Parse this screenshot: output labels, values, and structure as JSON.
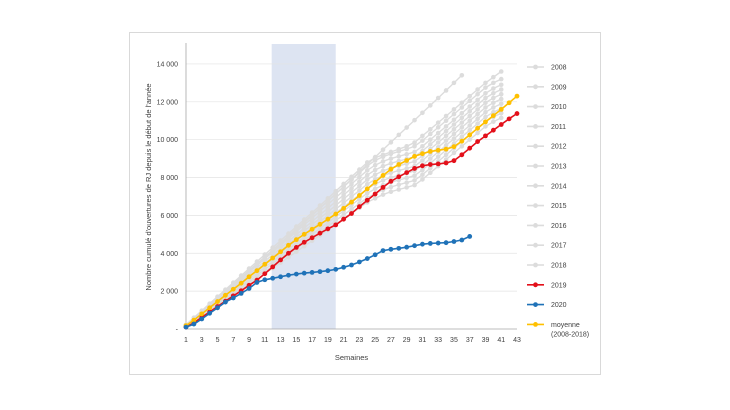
{
  "chart_data": {
    "type": "line",
    "xlabel": "Semaines",
    "ylabel": "Nombre cumulé d'ouvertures de RJ depuis le début de l'année",
    "ylim": [
      0,
      15000
    ],
    "xlim": [
      1,
      43
    ],
    "y_ticks": [
      "-",
      "2 000",
      "4 000",
      "6 000",
      "8 000",
      "10 000",
      "12 000",
      "14 000"
    ],
    "x_ticks": [
      1,
      3,
      5,
      7,
      9,
      11,
      13,
      15,
      17,
      19,
      21,
      23,
      25,
      27,
      29,
      31,
      33,
      35,
      37,
      39,
      41,
      43
    ],
    "shaded_weeks": [
      12,
      20
    ],
    "legend_placement": "right",
    "colors": {
      "history": "#dcdcdc",
      "y2019": "#e3101a",
      "y2020": "#1f72b8",
      "moyenne": "#ffc000",
      "shade": "#dde4f2"
    },
    "series": [
      {
        "name": "2008",
        "kind": "history",
        "values": [
          190,
          540,
          890,
          1240,
          1600,
          1960,
          2320,
          2680,
          3040,
          3400,
          3760,
          4130,
          4500,
          4870,
          5240,
          5610,
          5990,
          6370,
          6750,
          7130,
          7520,
          7910,
          8300,
          8690,
          9080,
          9470,
          9860,
          10250,
          10640,
          11030,
          11420,
          11810,
          12200,
          12600,
          13000,
          13400
        ]
      },
      {
        "name": "2009",
        "kind": "history",
        "values": [
          230,
          600,
          970,
          1340,
          1710,
          2080,
          2450,
          2820,
          3190,
          3560,
          3930,
          4300,
          4670,
          5040,
          5410,
          5780,
          6150,
          6520,
          6900,
          7280,
          7660,
          8040,
          8420,
          8800,
          9050,
          9200,
          9350,
          9500,
          9650,
          9850,
          10200,
          10550,
          10900,
          11250,
          11600,
          11950,
          12300,
          12650,
          13000,
          13300,
          13600
        ]
      },
      {
        "name": "2010",
        "kind": "history",
        "values": [
          210,
          570,
          930,
          1290,
          1650,
          2010,
          2370,
          2730,
          3090,
          3450,
          3810,
          4180,
          4550,
          4920,
          5290,
          5660,
          6030,
          6400,
          6770,
          7140,
          7510,
          7880,
          8250,
          8620,
          8900,
          9100,
          9250,
          9380,
          9500,
          9650,
          9950,
          10300,
          10650,
          11000,
          11350,
          11700,
          12050,
          12400,
          12750,
          13000,
          13200
        ]
      },
      {
        "name": "2011",
        "kind": "history",
        "values": [
          200,
          550,
          900,
          1250,
          1600,
          1950,
          2300,
          2650,
          3000,
          3350,
          3700,
          4060,
          4420,
          4780,
          5140,
          5500,
          5860,
          6220,
          6580,
          6940,
          7300,
          7660,
          8020,
          8380,
          8650,
          8850,
          9000,
          9120,
          9230,
          9350,
          9650,
          10000,
          10350,
          10700,
          11050,
          11400,
          11750,
          12100,
          12450,
          12700,
          12900
        ]
      },
      {
        "name": "2012",
        "kind": "history",
        "values": [
          180,
          520,
          860,
          1200,
          1540,
          1880,
          2220,
          2560,
          2900,
          3240,
          3580,
          3930,
          4280,
          4630,
          4980,
          5330,
          5680,
          6030,
          6380,
          6730,
          7080,
          7430,
          7780,
          8130,
          8400,
          8600,
          8750,
          8870,
          8980,
          9100,
          9400,
          9750,
          10100,
          10450,
          10800,
          11150,
          11500,
          11850,
          12200,
          12450,
          12650
        ]
      },
      {
        "name": "2013",
        "kind": "history",
        "values": [
          170,
          500,
          830,
          1160,
          1490,
          1820,
          2150,
          2480,
          2810,
          3140,
          3470,
          3810,
          4150,
          4490,
          4830,
          5170,
          5510,
          5850,
          6190,
          6530,
          6870,
          7210,
          7550,
          7890,
          8150,
          8350,
          8500,
          8620,
          8730,
          8850,
          9150,
          9500,
          9850,
          10200,
          10550,
          10900,
          11250,
          11600,
          11950,
          12200,
          12400
        ]
      },
      {
        "name": "2014",
        "kind": "history",
        "values": [
          160,
          480,
          800,
          1120,
          1440,
          1760,
          2080,
          2400,
          2720,
          3040,
          3360,
          3690,
          4020,
          4350,
          4680,
          5010,
          5340,
          5670,
          6000,
          6330,
          6660,
          6990,
          7320,
          7650,
          7900,
          8100,
          8250,
          8370,
          8480,
          8600,
          8900,
          9250,
          9600,
          9950,
          10300,
          10650,
          11000,
          11350,
          11700,
          11950,
          12150
        ]
      },
      {
        "name": "2015",
        "kind": "history",
        "values": [
          150,
          460,
          770,
          1080,
          1390,
          1700,
          2010,
          2320,
          2630,
          2940,
          3250,
          3570,
          3890,
          4210,
          4530,
          4850,
          5170,
          5490,
          5810,
          6130,
          6450,
          6770,
          7090,
          7410,
          7650,
          7850,
          8000,
          8120,
          8230,
          8350,
          8650,
          9000,
          9350,
          9700,
          10050,
          10400,
          10750,
          11100,
          11450,
          11700,
          11900
        ]
      },
      {
        "name": "2016",
        "kind": "history",
        "values": [
          140,
          440,
          740,
          1040,
          1340,
          1640,
          1940,
          2240,
          2540,
          2840,
          3140,
          3450,
          3760,
          4070,
          4380,
          4690,
          5000,
          5310,
          5620,
          5930,
          6240,
          6550,
          6860,
          7170,
          7400,
          7600,
          7750,
          7870,
          7980,
          8100,
          8400,
          8750,
          9100,
          9450,
          9800,
          10150,
          10500,
          10850,
          11200,
          11450,
          11650
        ]
      },
      {
        "name": "2017",
        "kind": "history",
        "values": [
          130,
          420,
          710,
          1000,
          1290,
          1580,
          1870,
          2160,
          2450,
          2740,
          3030,
          3330,
          3630,
          3930,
          4230,
          4530,
          4830,
          5130,
          5430,
          5730,
          6030,
          6330,
          6630,
          6930,
          7150,
          7350,
          7500,
          7620,
          7730,
          7850,
          8150,
          8500,
          8850,
          9200,
          9550,
          9900,
          10250,
          10600,
          10950,
          11200,
          11400
        ]
      },
      {
        "name": "2018",
        "kind": "history",
        "values": [
          120,
          400,
          680,
          960,
          1240,
          1520,
          1800,
          2080,
          2360,
          2640,
          2920,
          3210,
          3500,
          3790,
          4080,
          4370,
          4660,
          4950,
          5240,
          5530,
          5820,
          6110,
          6400,
          6690,
          6900,
          7100,
          7250,
          7370,
          7480,
          7600,
          7900,
          8250,
          8600,
          8950,
          9300,
          9650,
          10000,
          10350,
          10700,
          10950,
          11150
        ]
      },
      {
        "name": "2019",
        "kind": "y2019",
        "values": [
          100,
          330,
          620,
          900,
          1190,
          1470,
          1750,
          2020,
          2310,
          2580,
          2920,
          3280,
          3650,
          4000,
          4310,
          4580,
          4820,
          5060,
          5290,
          5500,
          5800,
          6100,
          6460,
          6800,
          7130,
          7480,
          7800,
          8040,
          8260,
          8480,
          8620,
          8690,
          8720,
          8770,
          8890,
          9200,
          9550,
          9900,
          10200,
          10500,
          10800,
          11100,
          11380
        ]
      },
      {
        "name": "2020",
        "kind": "y2020",
        "values": [
          100,
          260,
          530,
          830,
          1120,
          1420,
          1640,
          1880,
          2140,
          2460,
          2600,
          2680,
          2760,
          2840,
          2900,
          2950,
          2990,
          3030,
          3080,
          3150,
          3260,
          3380,
          3540,
          3720,
          3920,
          4140,
          4210,
          4260,
          4320,
          4400,
          4480,
          4520,
          4540,
          4560,
          4620,
          4700,
          4890
        ]
      },
      {
        "name": "moyenne\n(2008-2018)",
        "kind": "moyenne",
        "values": [
          180,
          470,
          800,
          1120,
          1450,
          1780,
          2100,
          2420,
          2760,
          3080,
          3420,
          3750,
          4080,
          4420,
          4720,
          5000,
          5270,
          5530,
          5800,
          6070,
          6370,
          6700,
          7050,
          7400,
          7750,
          8110,
          8440,
          8690,
          8900,
          9120,
          9260,
          9380,
          9440,
          9500,
          9630,
          9920,
          10250,
          10600,
          10940,
          11270,
          11600,
          11950,
          12300
        ]
      }
    ],
    "legend": [
      {
        "label": "2008",
        "kind": "history"
      },
      {
        "label": "2009",
        "kind": "history"
      },
      {
        "label": "2010",
        "kind": "history"
      },
      {
        "label": "2011",
        "kind": "history"
      },
      {
        "label": "2012",
        "kind": "history"
      },
      {
        "label": "2013",
        "kind": "history"
      },
      {
        "label": "2014",
        "kind": "history"
      },
      {
        "label": "2015",
        "kind": "history"
      },
      {
        "label": "2016",
        "kind": "history"
      },
      {
        "label": "2017",
        "kind": "history"
      },
      {
        "label": "2018",
        "kind": "history"
      },
      {
        "label": "2019",
        "kind": "y2019"
      },
      {
        "label": "2020",
        "kind": "y2020"
      },
      {
        "label": "moyenne",
        "label2": "(2008-2018)",
        "kind": "moyenne"
      }
    ]
  }
}
